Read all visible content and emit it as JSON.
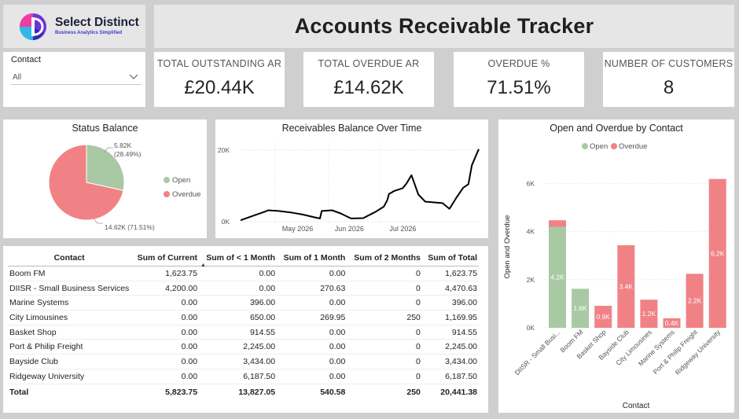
{
  "header": {
    "logo_name": "Select Distinct",
    "logo_tagline": "Business Analytics Simplified",
    "title": "Accounts Receivable Tracker"
  },
  "slicer": {
    "label": "Contact",
    "value": "All"
  },
  "kpis": [
    {
      "title": "TOTAL OUTSTANDING AR",
      "value": "£20.44K"
    },
    {
      "title": "TOTAL OVERDUE AR",
      "value": "£14.62K"
    },
    {
      "title": "OVERDUE %",
      "value": "71.51%"
    },
    {
      "title": "NUMBER OF CUSTOMERS",
      "value": "8"
    }
  ],
  "colors": {
    "open": "#a9c9a4",
    "overdue": "#f08286",
    "line": "#000000"
  },
  "chart_data": [
    {
      "type": "pie",
      "title": "Status Balance",
      "slices": [
        {
          "name": "Open",
          "value": 5.82,
          "label": "5.82K",
          "pct": "(28.49%)"
        },
        {
          "name": "Overdue",
          "value": 14.62,
          "label": "14.62K (71.51%)"
        }
      ],
      "legend": [
        "Open",
        "Overdue"
      ],
      "legend_position": "right"
    },
    {
      "type": "line",
      "title": "Receivables Balance Over Time",
      "x_ticks": [
        "May 2026",
        "Jun 2026",
        "Jul 2026"
      ],
      "y_ticks": [
        "0K",
        "20K"
      ],
      "ylim": [
        0,
        22000
      ],
      "x": [
        "2026-04-11",
        "2026-04-18",
        "2026-04-25",
        "2026-04-27",
        "2026-05-03",
        "2026-05-10",
        "2026-05-17",
        "2026-05-24",
        "2026-05-27",
        "2026-05-28",
        "2026-06-03",
        "2026-06-08",
        "2026-06-14",
        "2026-06-21",
        "2026-06-28",
        "2026-07-03",
        "2026-07-05",
        "2026-07-06",
        "2026-07-07",
        "2026-07-09",
        "2026-07-14",
        "2026-07-16",
        "2026-07-19",
        "2026-07-23",
        "2026-07-27",
        "2026-08-06",
        "2026-08-10",
        "2026-08-14",
        "2026-08-18",
        "2026-08-21",
        "2026-08-23",
        "2026-08-27"
      ],
      "values": [
        400,
        1600,
        2800,
        3200,
        3000,
        2600,
        2000,
        1200,
        900,
        3000,
        3200,
        2300,
        900,
        1000,
        2700,
        4200,
        6000,
        7800,
        8000,
        8600,
        9400,
        10600,
        13000,
        7600,
        5600,
        5200,
        3600,
        6700,
        9500,
        10500,
        15800,
        20300
      ],
      "grid": true
    },
    {
      "type": "bar",
      "stacked": true,
      "title": "Open and Overdue by Contact",
      "xlabel": "Contact",
      "ylabel": "Open and Overdue",
      "y_ticks": [
        "0K",
        "2K",
        "4K",
        "6K"
      ],
      "ylim": [
        0,
        6700
      ],
      "legend": [
        "Open",
        "Overdue"
      ],
      "legend_position": "top-left",
      "categories": [
        "DIISR - Small Busi...",
        "Boom FM",
        "Basket Shop",
        "Bayside Club",
        "City Limousines",
        "Marine Systems",
        "Port & Philip Freight",
        "Ridgeway University"
      ],
      "series": [
        {
          "name": "Open",
          "values": [
            4200,
            1624,
            0,
            0,
            0,
            0,
            0,
            0
          ],
          "labels": [
            "4.2K",
            "1.6K",
            "",
            "",
            "",
            "",
            "",
            ""
          ]
        },
        {
          "name": "Overdue",
          "values": [
            271,
            0,
            915,
            3434,
            1170,
            396,
            2245,
            6188
          ],
          "labels": [
            "",
            "",
            "0.9K",
            "3.4K",
            "1.2K",
            "0.4K",
            "2.2K",
            "6.2K"
          ]
        }
      ]
    }
  ],
  "table": {
    "columns": [
      "Contact",
      "Sum of Current",
      "Sum of < 1 Month",
      "Sum of 1 Month",
      "Sum of 2 Months",
      "Sum of Total"
    ],
    "rows": [
      [
        "Boom FM",
        "1,623.75",
        "0.00",
        "0.00",
        "0",
        "1,623.75"
      ],
      [
        "DIISR - Small Business Services",
        "4,200.00",
        "0.00",
        "270.63",
        "0",
        "4,470.63"
      ],
      [
        "Marine Systems",
        "0.00",
        "396.00",
        "0.00",
        "0",
        "396.00"
      ],
      [
        "City Limousines",
        "0.00",
        "650.00",
        "269.95",
        "250",
        "1,169.95"
      ],
      [
        "Basket Shop",
        "0.00",
        "914.55",
        "0.00",
        "0",
        "914.55"
      ],
      [
        "Port & Philip Freight",
        "0.00",
        "2,245.00",
        "0.00",
        "0",
        "2,245.00"
      ],
      [
        "Bayside Club",
        "0.00",
        "3,434.00",
        "0.00",
        "0",
        "3,434.00"
      ],
      [
        "Ridgeway University",
        "0.00",
        "6,187.50",
        "0.00",
        "0",
        "6,187.50"
      ]
    ],
    "total": [
      "Total",
      "5,823.75",
      "13,827.05",
      "540.58",
      "250",
      "20,441.38"
    ]
  }
}
